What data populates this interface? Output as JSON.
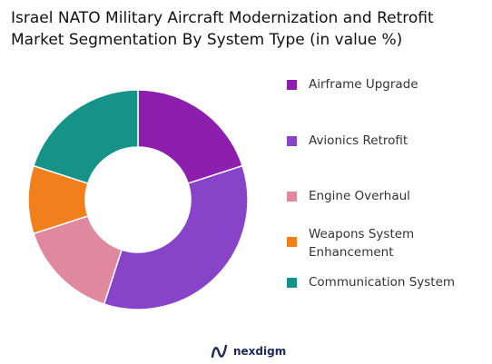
{
  "title_lines": [
    "Israel NATO Military Aircraft Modernization and Retrofit",
    "Market Segmentation By System Type (in value %)"
  ],
  "brand": {
    "name": "nexdigm",
    "icon": "nexdigm-logo-icon"
  },
  "chart_data": {
    "type": "pie",
    "donut": true,
    "title": "Israel NATO Military Aircraft Modernization and Retrofit Market Segmentation By System Type (in value %)",
    "legend_position": "right",
    "start_angle_degrees": 0,
    "direction": "clockwise",
    "categories": [
      "Airframe Upgrade",
      "Avionics Retrofit",
      "Engine Overhaul",
      "Weapons System Enhancement",
      "Communication System"
    ],
    "values": [
      20,
      35,
      15,
      10,
      20
    ],
    "colors": [
      "#8e1fae",
      "#8744c8",
      "#e0899e",
      "#f07f1c",
      "#149386"
    ]
  }
}
